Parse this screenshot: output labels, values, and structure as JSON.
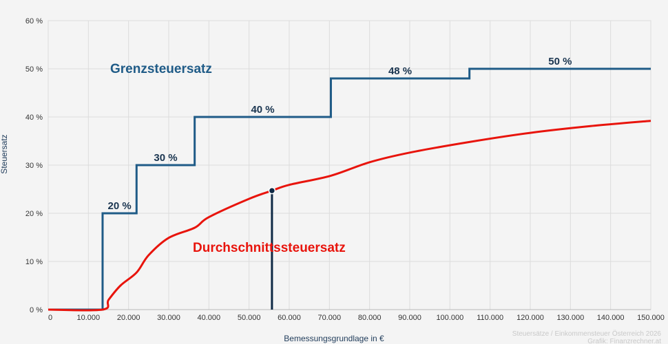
{
  "chart_data": {
    "type": "line",
    "xlabel": "Bemessungsgrundlage in €",
    "ylabel": "Steuersatz",
    "xlim": [
      0,
      150000
    ],
    "ylim": [
      0,
      60
    ],
    "grid": true,
    "x_ticks": [
      0,
      10000,
      20000,
      30000,
      40000,
      50000,
      60000,
      70000,
      80000,
      90000,
      100000,
      110000,
      120000,
      130000,
      140000,
      150000
    ],
    "x_tick_labels": [
      "0",
      "10.000",
      "20.000",
      "30.000",
      "40.000",
      "50.000",
      "60.000",
      "70.000",
      "80.000",
      "90.000",
      "100.000",
      "110.000",
      "120.000",
      "130.000",
      "140.000",
      "150.000"
    ],
    "y_ticks": [
      0,
      10,
      20,
      30,
      40,
      50,
      60
    ],
    "y_tick_labels": [
      "0 %",
      "10 %",
      "20 %",
      "30 %",
      "40 %",
      "50 %",
      "60 %"
    ],
    "series": [
      {
        "name": "Grenzsteuersatz",
        "color": "#1f5b87",
        "shape": "step",
        "brackets": [
          {
            "from": 0,
            "to": 13539,
            "rate": 0
          },
          {
            "from": 13539,
            "to": 21992,
            "rate": 20,
            "label": "20 %"
          },
          {
            "from": 21992,
            "to": 36458,
            "rate": 30,
            "label": "30 %"
          },
          {
            "from": 36458,
            "to": 70365,
            "rate": 40,
            "label": "40 %"
          },
          {
            "from": 70365,
            "to": 104859,
            "rate": 48,
            "label": "48 %"
          },
          {
            "from": 104859,
            "to": 150000,
            "rate": 50,
            "label": "50 %"
          }
        ]
      },
      {
        "name": "Durchschnittssteuersatz",
        "color": "#e8140c",
        "x": [
          0,
          13539,
          15000,
          18000,
          21992,
          25000,
          30000,
          36458,
          40000,
          50000,
          55700,
          60000,
          70365,
          80000,
          90000,
          104859,
          120000,
          135000,
          150000
        ],
        "y": [
          0,
          0,
          2.0,
          5.0,
          7.7,
          11.3,
          14.9,
          17.0,
          19.2,
          23.0,
          24.7,
          25.9,
          27.8,
          30.6,
          32.6,
          34.8,
          36.7,
          38.1,
          39.2
        ]
      }
    ],
    "marker": {
      "x": 55700,
      "y": 24.7,
      "color": "#0f2a45"
    },
    "credit": [
      "Steuersätze / Einkommensteuer Österreich 2026",
      "Grafik: Finanzrechner.at"
    ]
  }
}
